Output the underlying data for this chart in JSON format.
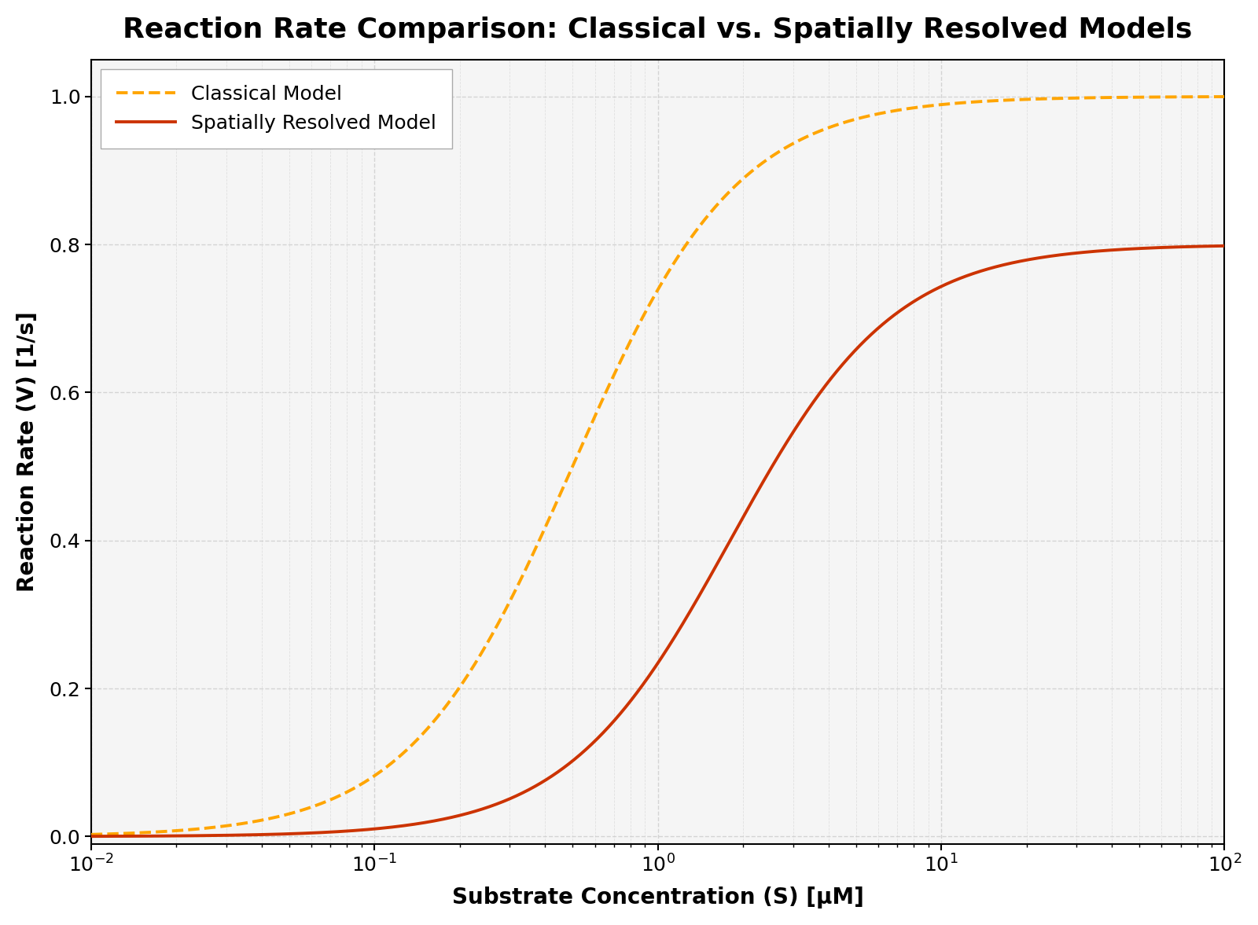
{
  "title": "Reaction Rate Comparison: Classical vs. Spatially Resolved Models",
  "xlabel": "Substrate Concentration (S) [μM]",
  "ylabel": "Reaction Rate (V) [1/s]",
  "xlim": [
    0.01,
    100
  ],
  "ylim": [
    -0.01,
    1.05
  ],
  "classical_color": "#FFA500",
  "spatial_color": "#CC3300",
  "classical_label": "Classical Model",
  "spatial_label": "Spatially Resolved Model",
  "classical_Vmax": 1.0,
  "classical_Km": 0.5,
  "classical_n": 1.5,
  "spatial_Vmax": 0.8,
  "spatial_Km": 1.8,
  "spatial_n": 1.5,
  "line_width": 2.8,
  "title_fontsize": 26,
  "label_fontsize": 20,
  "tick_fontsize": 18,
  "legend_fontsize": 18,
  "background_color": "#ffffff",
  "plot_bg_color": "#f5f5f5",
  "grid_color": "#cccccc",
  "grid_linestyle": "--",
  "grid_alpha": 0.8
}
